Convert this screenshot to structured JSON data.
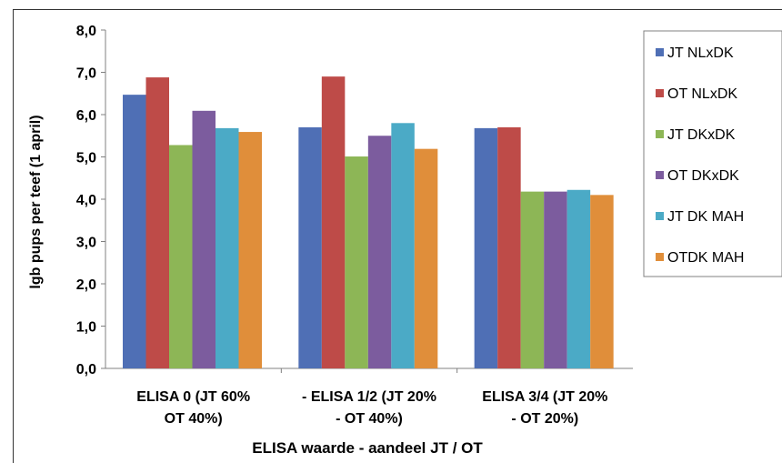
{
  "chart_data": {
    "type": "bar",
    "categories": [
      [
        "ELISA 0 (JT 60%",
        "OT 40%)"
      ],
      [
        "- ELISA 1/2 (JT 20%",
        "- OT 40%)"
      ],
      [
        "ELISA 3/4 (JT 20%",
        "- OT 20%)"
      ]
    ],
    "series": [
      {
        "name": "JT NLxDK",
        "color": "#4F6FB5",
        "values": [
          6.47,
          5.7,
          5.68
        ]
      },
      {
        "name": "OT NLxDK",
        "color": "#BE4B48",
        "values": [
          6.88,
          6.9,
          5.7
        ]
      },
      {
        "name": "JT DKxDK",
        "color": "#8DB656",
        "values": [
          5.28,
          5.01,
          4.18
        ]
      },
      {
        "name": "OT DKxDK",
        "color": "#7C5C9E",
        "values": [
          6.09,
          5.5,
          4.18
        ]
      },
      {
        "name": "JT DK MAH",
        "color": "#4BAAC6",
        "values": [
          5.68,
          5.8,
          4.22
        ]
      },
      {
        "name": "OTDK MAH",
        "color": "#E08E3A",
        "values": [
          5.59,
          5.19,
          4.1
        ]
      }
    ],
    "yticks": [
      "0,0",
      "1,0",
      "2,0",
      "3,0",
      "4,0",
      "5,0",
      "6,0",
      "7,0",
      "8,0"
    ],
    "ylim": [
      0,
      8
    ],
    "ylabel": "lgb pups per teef (1 april)",
    "xlabel": "ELISA waarde - aandeel JT / OT",
    "grid": false,
    "legend": "right"
  }
}
